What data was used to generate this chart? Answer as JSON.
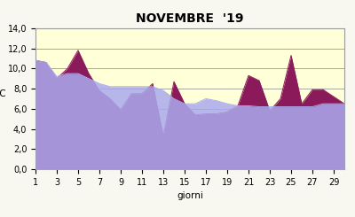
{
  "title": "NOVEMBRE  '19",
  "xlabel": "giorni",
  "ylabel": "°C",
  "background_color": "#FAFAF0",
  "plot_bg_color": "#FFFFF0",
  "plot_bg_color2": "#FFFFD0",
  "days": [
    1,
    2,
    3,
    4,
    5,
    6,
    7,
    8,
    9,
    10,
    11,
    12,
    13,
    14,
    15,
    16,
    17,
    18,
    19,
    20,
    21,
    22,
    23,
    24,
    25,
    26,
    27,
    28,
    29,
    30
  ],
  "series1": [
    10.8,
    10.6,
    9.0,
    10.0,
    11.8,
    9.5,
    7.8,
    7.0,
    5.9,
    7.5,
    7.5,
    8.5,
    3.3,
    8.7,
    6.5,
    5.4,
    5.5,
    5.5,
    5.7,
    6.3,
    9.3,
    8.8,
    5.8,
    7.0,
    11.3,
    6.5,
    7.9,
    7.9,
    7.2,
    6.5
  ],
  "series2": [
    10.8,
    10.6,
    9.2,
    9.5,
    9.5,
    9.0,
    8.5,
    8.2,
    8.2,
    8.2,
    8.2,
    8.2,
    7.8,
    7.0,
    6.5,
    6.5,
    7.0,
    6.8,
    6.5,
    6.3,
    6.3,
    6.2,
    6.2,
    6.2,
    6.2,
    6.2,
    6.2,
    6.5,
    6.5,
    6.5
  ],
  "series1_color": "#8B1A5A",
  "series2_color": "#AAAAEE",
  "ylim": [
    0,
    14
  ],
  "yticks": [
    0.0,
    2.0,
    4.0,
    6.0,
    8.0,
    10.0,
    12.0,
    14.0
  ],
  "xticks": [
    1,
    3,
    5,
    7,
    9,
    11,
    13,
    15,
    17,
    19,
    21,
    23,
    25,
    27,
    29
  ],
  "grid_color": "#999999",
  "border_color": "#999999",
  "title_fontsize": 10,
  "axis_fontsize": 7.5,
  "tick_fontsize": 7
}
